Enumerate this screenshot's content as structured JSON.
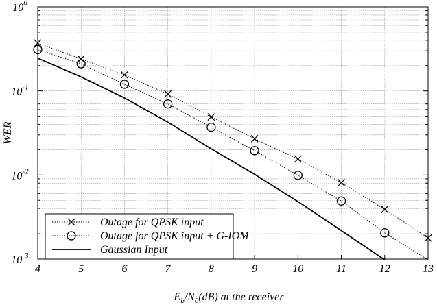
{
  "chart_data": {
    "type": "line",
    "title": "",
    "xlabel": {
      "main": "E",
      "sub1": "b",
      "mid": "/N",
      "sub2": "0",
      "rest": "(dB) at the receiver"
    },
    "ylabel": "WER",
    "xlim": [
      4,
      13
    ],
    "ylim": [
      0.001,
      1
    ],
    "yscale": "log",
    "grid": true,
    "xticks": [
      "4",
      "5",
      "6",
      "7",
      "8",
      "9",
      "10",
      "11",
      "12",
      "13"
    ],
    "yticks": [
      {
        "value": 1,
        "base": "10",
        "exp": "0"
      },
      {
        "value": 0.1,
        "base": "10",
        "exp": "-1"
      },
      {
        "value": 0.01,
        "base": "10",
        "exp": "-2"
      },
      {
        "value": 0.001,
        "base": "10",
        "exp": "-3"
      }
    ],
    "legend_position": "bottom-left",
    "series": [
      {
        "name": "Outage for QPSK input",
        "line_style": "dotted",
        "marker": "x",
        "x": [
          4,
          5,
          6,
          7,
          8,
          9,
          10,
          11,
          12,
          13
        ],
        "y": [
          0.37,
          0.24,
          0.155,
          0.092,
          0.049,
          0.027,
          0.0155,
          0.0081,
          0.0039,
          0.00178
        ]
      },
      {
        "name": "Outage for QPSK input + G-IOM",
        "line_style": "dotted",
        "marker": "circle",
        "x": [
          4,
          5,
          6,
          7,
          8,
          9,
          10,
          11,
          12,
          13
        ],
        "y": [
          0.31,
          0.21,
          0.12,
          0.07,
          0.037,
          0.0195,
          0.0099,
          0.0049,
          0.00205,
          0.00098
        ],
        "marker_x": [
          4,
          5,
          6,
          7,
          8,
          9,
          10,
          11,
          12
        ]
      },
      {
        "name": "Gaussian Input",
        "line_style": "solid",
        "marker": "none",
        "x": [
          4,
          5,
          6,
          7,
          8,
          9,
          10,
          11,
          12
        ],
        "y": [
          0.245,
          0.147,
          0.0825,
          0.0425,
          0.0205,
          0.0102,
          0.00483,
          0.00218,
          0.00098
        ]
      }
    ]
  }
}
